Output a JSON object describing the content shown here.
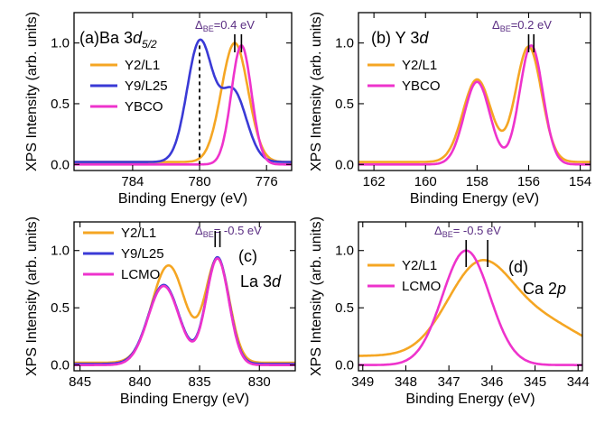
{
  "figure": {
    "ylabel": "XPS Intensity (arb. units)",
    "xlabel": "Binding Energy (eV)"
  },
  "chart_data": [
    {
      "id": "a",
      "type": "line",
      "panel_label": "(a)Ba 3d5/2",
      "panel_label_main": "(a)Ba 3",
      "panel_label_italic": "d",
      "panel_label_sub": "5/2",
      "annotation": "ΔBE=0.4 eV",
      "annotation_delta": "Δ",
      "annotation_sub": "BE",
      "annotation_rest": "=0.4 eV",
      "xlabel": "Binding Energy (eV)",
      "ylabel": "XPS Intensity (arb. units)",
      "xlim": [
        787.5,
        774.5
      ],
      "ylim": [
        -0.05,
        1.25
      ],
      "xticks": [
        "784",
        "780",
        "776"
      ],
      "xtick_values": [
        784,
        780,
        776
      ],
      "yticks": [
        "0.0",
        "0.5",
        "1.0"
      ],
      "ytick_values": [
        0.0,
        0.5,
        1.0
      ],
      "dashed_line_x": 780.0,
      "markers_x": [
        777.9,
        777.5
      ],
      "series": [
        {
          "name": "Y2/L1",
          "color": "#f5a623",
          "peaks": [
            {
              "c": 777.9,
              "w": 0.8,
              "h": 0.98
            }
          ],
          "base": 0.02
        },
        {
          "name": "Y9/L25",
          "color": "#3a3ad6",
          "peaks": [
            {
              "c": 780.0,
              "w": 0.75,
              "h": 0.98
            },
            {
              "c": 778.0,
              "w": 0.8,
              "h": 0.58
            }
          ],
          "base": 0.02
        },
        {
          "name": "YBCO",
          "color": "#ee33cc",
          "peaks": [
            {
              "c": 777.5,
              "w": 0.6,
              "h": 0.98
            }
          ],
          "base": 0.0
        }
      ]
    },
    {
      "id": "b",
      "type": "line",
      "panel_label": "(b) Y 3d",
      "panel_label_main": "(b) Y 3",
      "panel_label_italic": "d",
      "panel_label_sub": "",
      "annotation": "ΔBE=0.2 eV",
      "annotation_delta": "Δ",
      "annotation_sub": "BE",
      "annotation_rest": "=0.2 eV",
      "xlabel": "Binding Energy (eV)",
      "ylabel": "XPS Intensity (arb. units)",
      "xlim": [
        162.6,
        153.6
      ],
      "ylim": [
        -0.05,
        1.25
      ],
      "xticks": [
        "162",
        "160",
        "158",
        "156",
        "154"
      ],
      "xtick_values": [
        162,
        160,
        158,
        156,
        154
      ],
      "yticks": [
        "0.0",
        "0.5",
        "1.0"
      ],
      "ytick_values": [
        0.0,
        0.5,
        1.0
      ],
      "markers_x": [
        156.0,
        155.8
      ],
      "series": [
        {
          "name": "Y2/L1",
          "color": "#f5a623",
          "peaks": [
            {
              "c": 158.0,
              "w": 0.55,
              "h": 0.68
            },
            {
              "c": 156.0,
              "w": 0.5,
              "h": 0.95
            }
          ],
          "base": 0.02
        },
        {
          "name": "YBCO",
          "color": "#ee33cc",
          "peaks": [
            {
              "c": 158.0,
              "w": 0.5,
              "h": 0.68
            },
            {
              "c": 155.9,
              "w": 0.45,
              "h": 0.98
            }
          ],
          "base": 0.0
        }
      ]
    },
    {
      "id": "c",
      "type": "line",
      "panel_label": "(c)",
      "panel_label_main": "(c)",
      "panel_label_italic": "",
      "panel_label_sub": "",
      "secondary_label": "La 3d",
      "secondary_label_main": "La 3",
      "secondary_label_italic": "d",
      "annotation": "ΔBE= -0.5 eV",
      "annotation_delta": "Δ",
      "annotation_sub": "BE",
      "annotation_rest": "= -0.5 eV",
      "xlabel": "Binding Energy (eV)",
      "ylabel": "XPS Intensity (arb. units)",
      "xlim": [
        845.5,
        827.0
      ],
      "ylim": [
        -0.05,
        1.25
      ],
      "xticks": [
        "845",
        "840",
        "835",
        "830"
      ],
      "xtick_values": [
        845,
        840,
        835,
        830
      ],
      "yticks": [
        "0.0",
        "0.5",
        "1.0"
      ],
      "ytick_values": [
        0.0,
        0.5,
        1.0
      ],
      "markers_x": [
        833.7,
        833.3
      ],
      "series": [
        {
          "name": "Y2/L1",
          "color": "#f5a623",
          "peaks": [
            {
              "c": 837.6,
              "w": 1.4,
              "h": 0.85
            },
            {
              "c": 833.5,
              "w": 1.0,
              "h": 0.9
            }
          ],
          "base": 0.02
        },
        {
          "name": "Y9/L25",
          "color": "#3a3ad6",
          "peaks": [
            {
              "c": 838.0,
              "w": 1.3,
              "h": 0.69
            },
            {
              "c": 833.5,
              "w": 0.95,
              "h": 0.93
            }
          ],
          "base": 0.01
        },
        {
          "name": "LCMO",
          "color": "#ee33cc",
          "peaks": [
            {
              "c": 838.0,
              "w": 1.3,
              "h": 0.69
            },
            {
              "c": 833.5,
              "w": 0.95,
              "h": 0.93
            }
          ],
          "base": 0.0
        }
      ]
    },
    {
      "id": "d",
      "type": "line",
      "panel_label": "(d)",
      "panel_label_main": "(d)",
      "panel_label_italic": "",
      "panel_label_sub": "",
      "secondary_label": "Ca 2p",
      "secondary_label_main": "Ca 2",
      "secondary_label_italic": "p",
      "annotation": "ΔBE= -0.5 eV",
      "annotation_delta": "Δ",
      "annotation_sub": "BE",
      "annotation_rest": "= -0.5 eV",
      "xlabel": "Binding Energy (eV)",
      "ylabel": "XPS Intensity (arb. units)",
      "xlim": [
        349.1,
        343.9
      ],
      "ylim": [
        -0.05,
        1.25
      ],
      "xticks": [
        "349",
        "348",
        "347",
        "346",
        "345",
        "344"
      ],
      "xtick_values": [
        349,
        348,
        347,
        346,
        345,
        344
      ],
      "yticks": [
        "0.0",
        "0.5",
        "1.0"
      ],
      "ytick_values": [
        0.0,
        0.5,
        1.0
      ],
      "markers_x": [
        346.6,
        346.1
      ],
      "series": [
        {
          "name": "Y2/L1",
          "color": "#f5a623",
          "peaks": [
            {
              "c": 346.3,
              "w": 0.75,
              "h": 0.76
            },
            {
              "c": 344.8,
              "w": 0.9,
              "h": 0.28
            }
          ],
          "base": 0.08
        },
        {
          "name": "LCMO",
          "color": "#ee33cc",
          "peaks": [
            {
              "c": 346.6,
              "w": 0.55,
              "h": 1.0
            }
          ],
          "base": 0.0
        }
      ]
    }
  ]
}
